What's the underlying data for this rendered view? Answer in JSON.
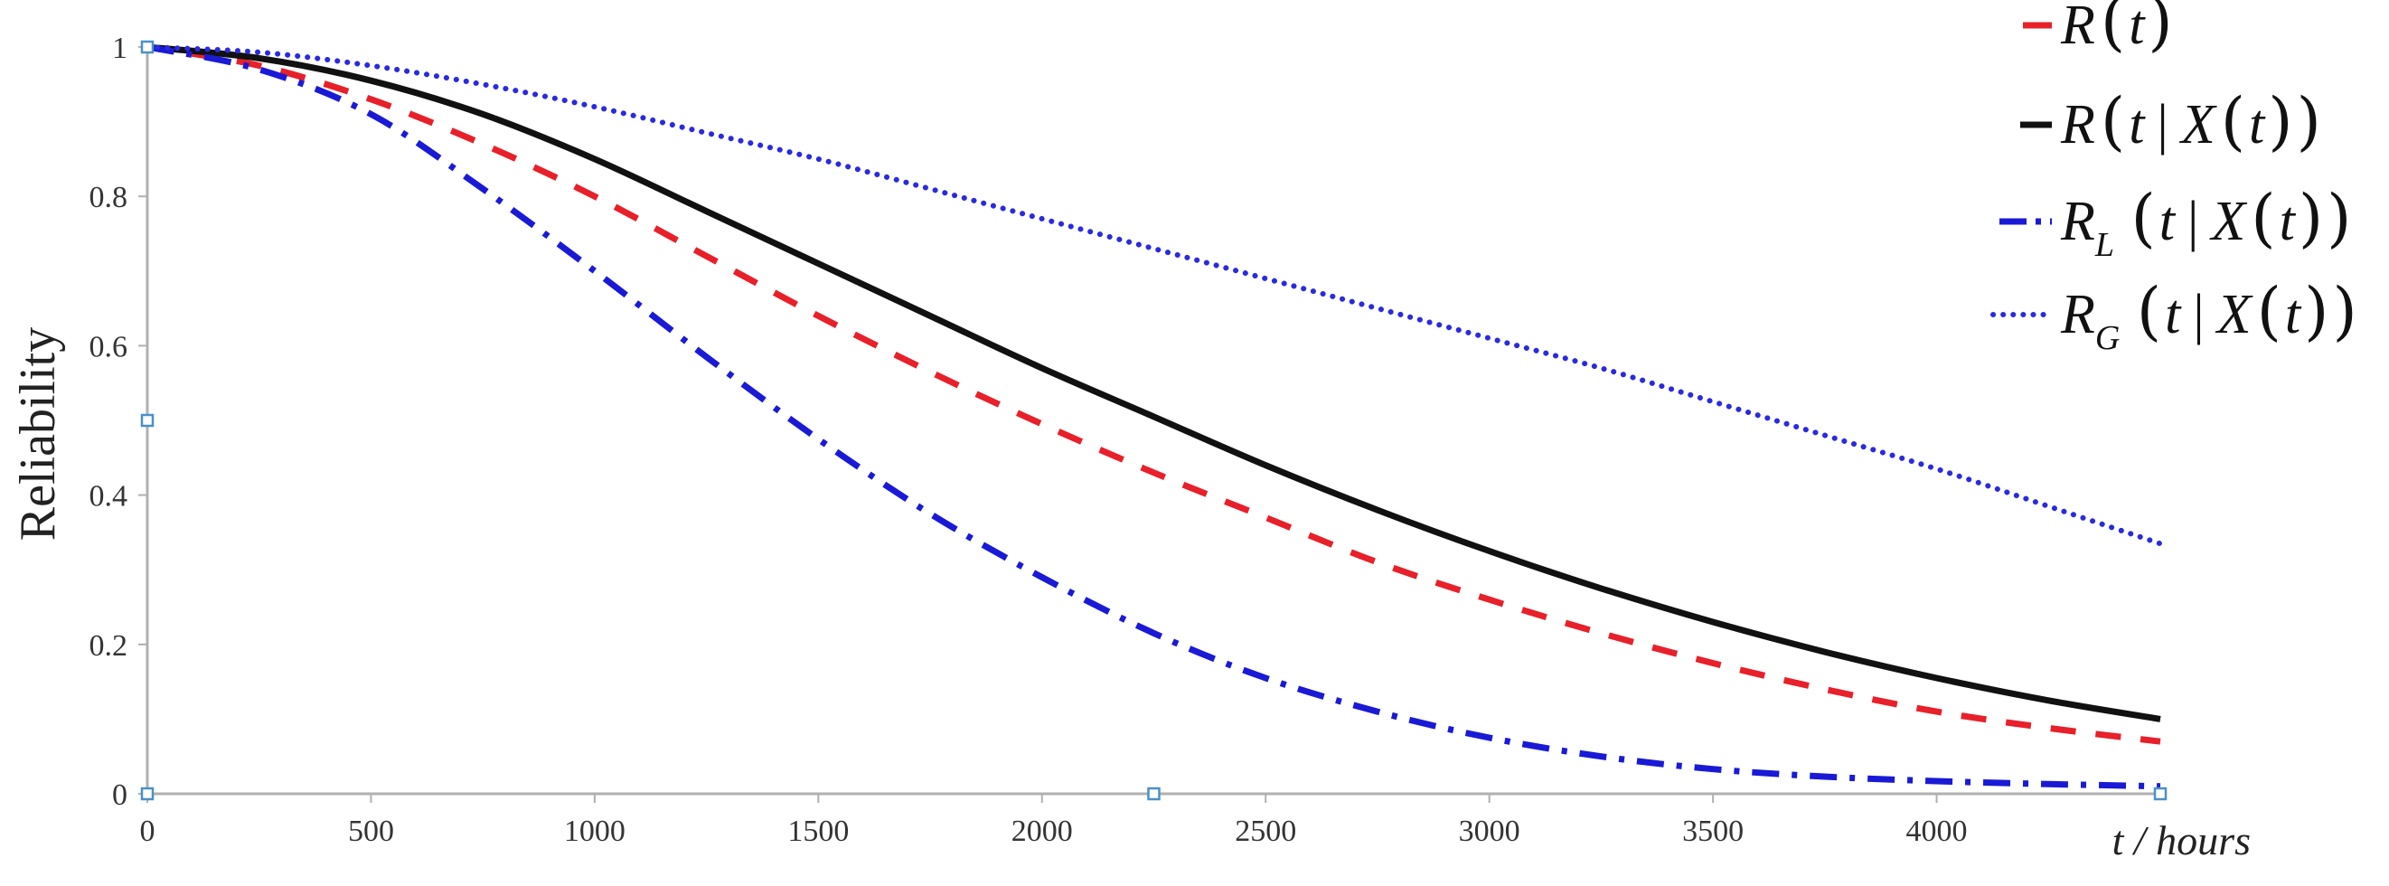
{
  "chart_data": {
    "type": "line",
    "title": "",
    "xlabel": "t / hours",
    "ylabel": "Reliability",
    "xlim": [
      0,
      4500
    ],
    "ylim": [
      0,
      1
    ],
    "xticks": [
      0,
      500,
      1000,
      1500,
      2000,
      2500,
      3000,
      3500,
      4000
    ],
    "yticks": [
      0,
      0.2,
      0.4,
      0.6,
      0.8,
      1
    ],
    "xtick_labels": [
      "0",
      "500",
      "1000",
      "1500",
      "2000",
      "2500",
      "3000",
      "3500",
      "4000"
    ],
    "ytick_labels": [
      "0",
      "0.2",
      "0.4",
      "0.6",
      "0.8",
      "1"
    ],
    "grid": false,
    "legend_position": "top-right",
    "x": [
      0,
      250,
      500,
      750,
      1000,
      1250,
      1500,
      1750,
      2000,
      2250,
      2500,
      2750,
      3000,
      3250,
      3500,
      3750,
      4000,
      4250,
      4500
    ],
    "series": [
      {
        "name": "R(t)",
        "legend": {
          "base": "R",
          "sub": "",
          "cond": false
        },
        "color": "#e8202a",
        "style": "dashed",
        "values": [
          1.0,
          0.975,
          0.93,
          0.87,
          0.8,
          0.72,
          0.64,
          0.565,
          0.495,
          0.43,
          0.37,
          0.31,
          0.26,
          0.215,
          0.175,
          0.14,
          0.11,
          0.088,
          0.07
        ]
      },
      {
        "name": "R(t | X(t))",
        "legend": {
          "base": "R",
          "sub": "",
          "cond": true
        },
        "color": "#111111",
        "style": "solid",
        "values": [
          1.0,
          0.985,
          0.955,
          0.91,
          0.85,
          0.78,
          0.71,
          0.64,
          0.57,
          0.505,
          0.44,
          0.38,
          0.325,
          0.275,
          0.23,
          0.19,
          0.155,
          0.125,
          0.1
        ]
      },
      {
        "name": "R_L(t | X(t))",
        "legend": {
          "base": "R",
          "sub": "L",
          "cond": true
        },
        "color": "#1a1ad6",
        "style": "dashdot",
        "values": [
          1.0,
          0.97,
          0.91,
          0.81,
          0.7,
          0.585,
          0.475,
          0.375,
          0.29,
          0.215,
          0.155,
          0.11,
          0.075,
          0.05,
          0.033,
          0.023,
          0.017,
          0.013,
          0.01
        ]
      },
      {
        "name": "R_G(t | X(t))",
        "legend": {
          "base": "R",
          "sub": "G",
          "cond": true
        },
        "color": "#2a2ae0",
        "style": "dotted",
        "values": [
          1.0,
          0.993,
          0.975,
          0.95,
          0.92,
          0.885,
          0.85,
          0.81,
          0.77,
          0.73,
          0.69,
          0.65,
          0.61,
          0.57,
          0.525,
          0.48,
          0.435,
          0.385,
          0.335
        ]
      }
    ],
    "markers": [
      {
        "x": 0,
        "y": 1
      },
      {
        "x": 0,
        "y": 0.5
      },
      {
        "x": 0,
        "y": 0
      },
      {
        "x": 2250,
        "y": 0
      },
      {
        "x": 4500,
        "y": 0
      }
    ]
  }
}
